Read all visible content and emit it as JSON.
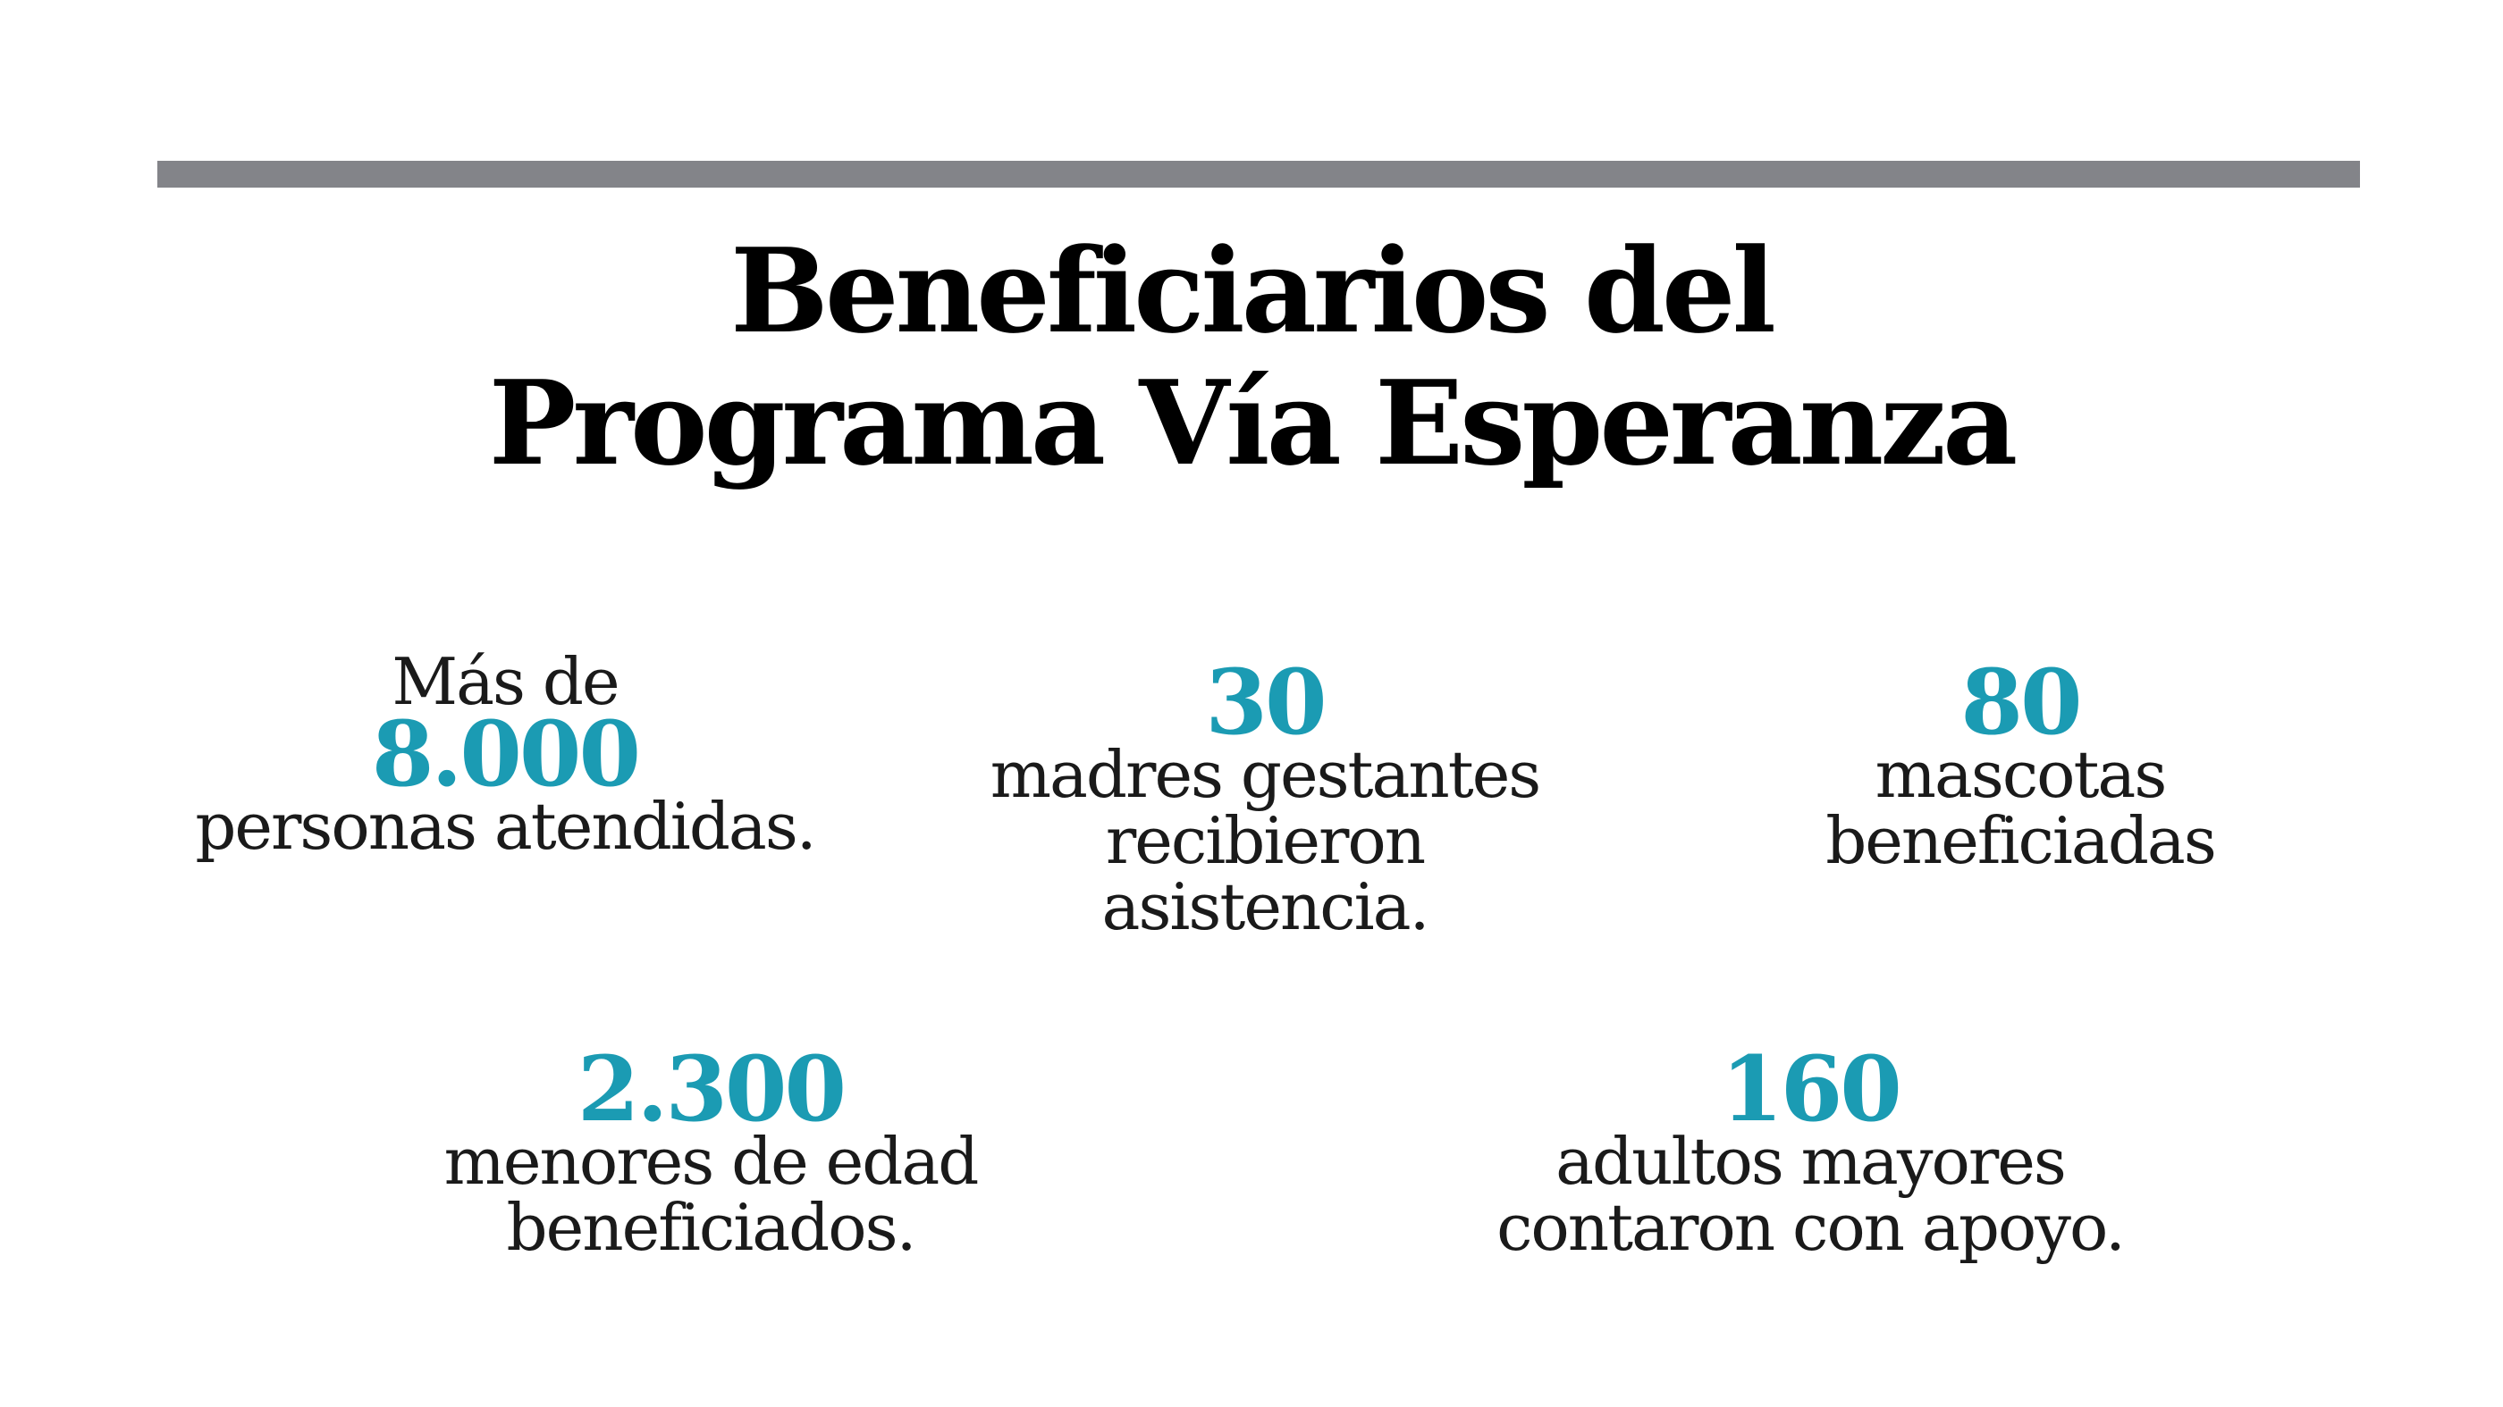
{
  "title": {
    "line1": "Beneficiarios del",
    "line2": "Programa Vía Esperanza"
  },
  "colors": {
    "accent": "#1b9bb3",
    "rule": "#838489",
    "title": "#000000",
    "text": "#1a1a1a"
  },
  "stats": [
    {
      "prefix": "Más de",
      "value": "8.000",
      "lines": [
        "personas atendidas."
      ]
    },
    {
      "value": "30",
      "lines": [
        "madres gestantes",
        "recibieron",
        "asistencia."
      ]
    },
    {
      "value": "80",
      "lines": [
        "mascotas",
        "beneficiadas"
      ]
    },
    {
      "value": "2.300",
      "lines": [
        "menores de edad",
        "beneficiados."
      ]
    },
    {
      "value": "160",
      "lines": [
        "adultos mayores",
        "contaron con apoyo."
      ]
    }
  ]
}
